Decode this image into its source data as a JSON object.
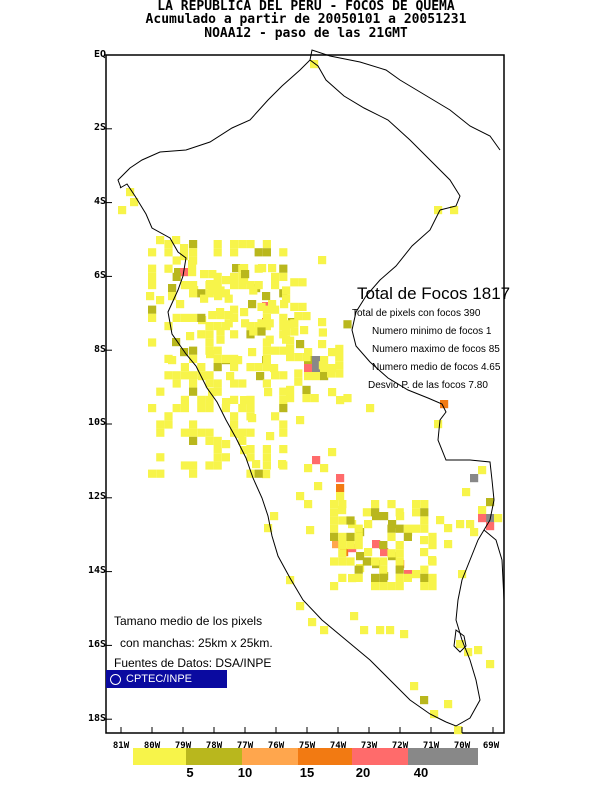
{
  "title": {
    "line1": "LA REPUBLICA DEL PERU - FOCOS DE QUEMA",
    "line2": "Acumulado a partir de 20050101 a 20051231",
    "line3": "NOAA12 - paso de las 21GMT"
  },
  "axes": {
    "lat_labels": [
      "EQ",
      "2S",
      "4S",
      "6S",
      "8S",
      "10S",
      "12S",
      "14S",
      "16S",
      "18S"
    ],
    "lon_labels": [
      "81W",
      "80W",
      "79W",
      "78W",
      "77W",
      "76W",
      "75W",
      "74W",
      "73W",
      "72W",
      "71W",
      "70W",
      "69W"
    ]
  },
  "stats": {
    "total": "Total de Focos 1817",
    "pixels": "Total de pixels con focos 390",
    "min": "Numero minimo de focos 1",
    "max": "Numero maximo de focos 85",
    "mean": "Numero medio de focos 4.65",
    "std": "Desvio P. de las focos 7.80"
  },
  "notes": {
    "line1": "Tamano medio de los pixels",
    "line2": "con manchas: 25km x 25km.",
    "line3": "Fuentes de Datos: DSA/INPE"
  },
  "logo": {
    "text": "CPTEC/INPE"
  },
  "colorbar": {
    "labels": [
      "5",
      "10",
      "15",
      "20",
      "40"
    ],
    "colors": [
      "#f7f44a",
      "#b9b71d",
      "#ffa64d",
      "#f27a12",
      "#ff6b6b",
      "#888888"
    ]
  },
  "fire_colors": {
    "c1": "#f7f44a",
    "c2": "#b9b71d",
    "c3": "#ffa64d",
    "c4": "#f27a12",
    "c5": "#ff6b6b",
    "c6": "#888888"
  }
}
